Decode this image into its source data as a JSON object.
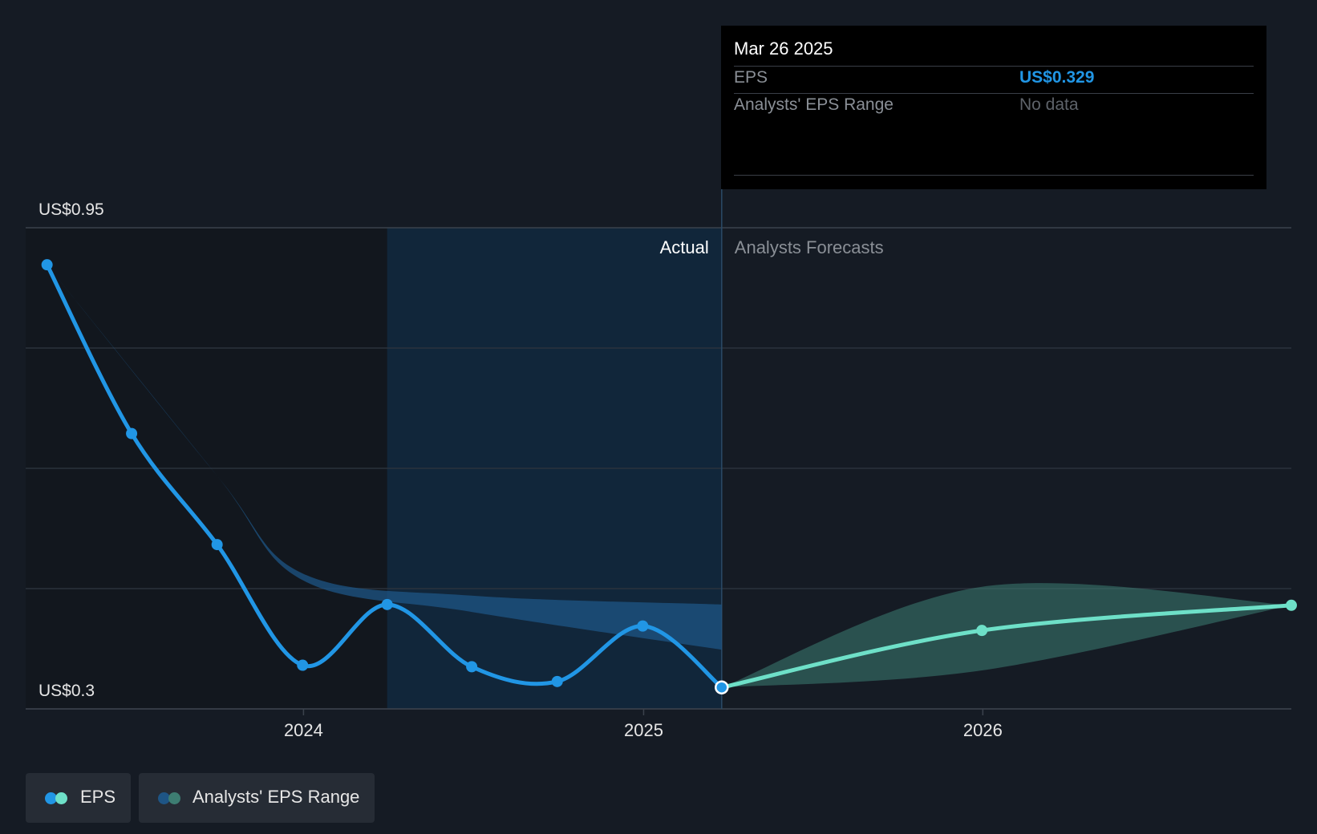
{
  "colors": {
    "background": "#151b24",
    "actual_line": "#2196e5",
    "forecast_line": "#6ee0c8",
    "forecast_range": "#3d7d72",
    "actual_band": "#1e5585",
    "grid": "#2b323c",
    "tooltip_value": "#2196e5"
  },
  "tooltip": {
    "date": "Mar 26 2025",
    "rows": [
      {
        "label": "EPS",
        "value": "US$0.329"
      },
      {
        "label": "Analysts' EPS Range",
        "value": "No data"
      }
    ]
  },
  "legend": [
    {
      "label": "EPS"
    },
    {
      "label": "Analysts' EPS Range"
    }
  ],
  "chart_data": {
    "type": "line",
    "y_axis_labels": {
      "top": "US$0.95",
      "bottom": "US$0.3"
    },
    "ylim": [
      0.3,
      0.95
    ],
    "xlim": [
      "2023-03-08",
      "2026-11-29"
    ],
    "x_ticks": [
      {
        "label": "2024",
        "date": "2024-01-01"
      },
      {
        "label": "2025",
        "date": "2025-01-01"
      },
      {
        "label": "2026",
        "date": "2026-01-01"
      }
    ],
    "section_labels": {
      "actual": "Actual",
      "forecast": "Analysts Forecasts"
    },
    "divider_date": "2025-03-26",
    "highlight_start": "2024-03-31",
    "grid": true,
    "legend_position": "bottom-left",
    "series": [
      {
        "name": "EPS",
        "kind": "actual",
        "points": [
          {
            "x": "2023-03-31",
            "y": 0.9
          },
          {
            "x": "2023-06-30",
            "y": 0.672
          },
          {
            "x": "2023-09-30",
            "y": 0.522
          },
          {
            "x": "2023-12-31",
            "y": 0.359
          },
          {
            "x": "2024-03-31",
            "y": 0.441
          },
          {
            "x": "2024-06-30",
            "y": 0.357
          },
          {
            "x": "2024-09-30",
            "y": 0.337
          },
          {
            "x": "2024-12-31",
            "y": 0.412
          },
          {
            "x": "2025-03-26",
            "y": 0.329
          }
        ]
      },
      {
        "name": "EPS",
        "kind": "forecast",
        "points": [
          {
            "x": "2025-03-26",
            "y": 0.329
          },
          {
            "x": "2025-12-31",
            "y": 0.406
          },
          {
            "x": "2026-11-29",
            "y": 0.44
          }
        ]
      }
    ],
    "actual_range_band": {
      "upper": [
        {
          "x": "2023-03-31",
          "y": 0.9
        },
        {
          "x": "2023-09-30",
          "y": 0.615
        },
        {
          "x": "2023-12-31",
          "y": 0.483
        },
        {
          "x": "2024-06-30",
          "y": 0.453
        },
        {
          "x": "2025-03-26",
          "y": 0.441
        }
      ],
      "lower": [
        {
          "x": "2023-03-31",
          "y": 0.9
        },
        {
          "x": "2023-09-30",
          "y": 0.615
        },
        {
          "x": "2023-12-31",
          "y": 0.474
        },
        {
          "x": "2024-06-30",
          "y": 0.431
        },
        {
          "x": "2025-03-26",
          "y": 0.38
        }
      ]
    },
    "forecast_range": {
      "upper": [
        {
          "x": "2025-03-26",
          "y": 0.329
        },
        {
          "x": "2025-12-31",
          "y": 0.465
        },
        {
          "x": "2026-11-29",
          "y": 0.44
        }
      ],
      "lower": [
        {
          "x": "2025-03-26",
          "y": 0.329
        },
        {
          "x": "2025-12-31",
          "y": 0.352
        },
        {
          "x": "2026-11-29",
          "y": 0.44
        }
      ]
    }
  }
}
